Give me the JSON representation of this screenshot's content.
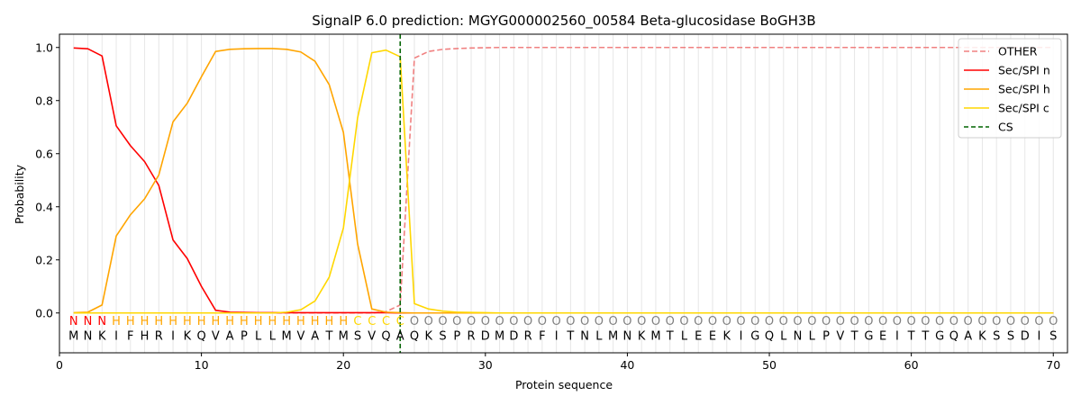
{
  "chart_data": {
    "type": "line",
    "title": "SignalP 6.0 prediction: MGYG000002560_00584 Beta-glucosidase BoGH3B",
    "xlabel": "Protein sequence",
    "ylabel": "Probability",
    "xlim": [
      0,
      71
    ],
    "ylim": [
      -0.15,
      1.05
    ],
    "xticks": [
      0,
      10,
      20,
      30,
      40,
      50,
      60,
      70
    ],
    "yticks": [
      0.0,
      0.2,
      0.4,
      0.6,
      0.8,
      1.0
    ],
    "grid": "vertical lines at each residue",
    "legend_position": "top-right",
    "sequence": [
      "M",
      "N",
      "K",
      "I",
      "F",
      "H",
      "R",
      "I",
      "K",
      "Q",
      "V",
      "A",
      "P",
      "L",
      "L",
      "M",
      "V",
      "A",
      "T",
      "M",
      "S",
      "V",
      "Q",
      "A",
      "Q",
      "K",
      "S",
      "P",
      "R",
      "D",
      "M",
      "D",
      "R",
      "F",
      "I",
      "T",
      "N",
      "L",
      "M",
      "N",
      "K",
      "M",
      "T",
      "L",
      "E",
      "E",
      "K",
      "I",
      "G",
      "Q",
      "L",
      "N",
      "L",
      "P",
      "V",
      "T",
      "G",
      "E",
      "I",
      "T",
      "T",
      "G",
      "Q",
      "A",
      "K",
      "S",
      "S",
      "D",
      "I",
      "S"
    ],
    "annotation": [
      "N",
      "N",
      "N",
      "H",
      "H",
      "H",
      "H",
      "H",
      "H",
      "H",
      "H",
      "H",
      "H",
      "H",
      "H",
      "H",
      "H",
      "H",
      "H",
      "H",
      "C",
      "C",
      "C",
      "C",
      "O",
      "O",
      "O",
      "O",
      "O",
      "O",
      "O",
      "O",
      "O",
      "O",
      "O",
      "O",
      "O",
      "O",
      "O",
      "O",
      "O",
      "O",
      "O",
      "O",
      "O",
      "O",
      "O",
      "O",
      "O",
      "O",
      "O",
      "O",
      "O",
      "O",
      "O",
      "O",
      "O",
      "O",
      "O",
      "O",
      "O",
      "O",
      "O",
      "O",
      "O",
      "O",
      "O",
      "O",
      "O",
      "O"
    ],
    "annotation_colors": {
      "N": "#ff0000",
      "H": "#ffa500",
      "C": "#ffd700",
      "O": "#808080"
    },
    "cleavage_site": 24,
    "series": [
      {
        "name": "OTHER",
        "color": "#f08080",
        "dash": true,
        "values": [
          0,
          0,
          0,
          0,
          0,
          0,
          0,
          0,
          0,
          0,
          0,
          0,
          0,
          0,
          0,
          0,
          0,
          0,
          0,
          0,
          0,
          0,
          0.005,
          0.03,
          0.96,
          0.985,
          0.993,
          0.996,
          0.998,
          0.999,
          1,
          1,
          1,
          1,
          1,
          1,
          1,
          1,
          1,
          1,
          1,
          1,
          1,
          1,
          1,
          1,
          1,
          1,
          1,
          1,
          1,
          1,
          1,
          1,
          1,
          1,
          1,
          1,
          1,
          1,
          1,
          1,
          1,
          1,
          1,
          1,
          1,
          1,
          1,
          1
        ]
      },
      {
        "name": "Sec/SPI n",
        "color": "#ff0000",
        "dash": false,
        "values": [
          0.998,
          0.995,
          0.968,
          0.705,
          0.63,
          0.57,
          0.48,
          0.275,
          0.205,
          0.1,
          0.01,
          0.003,
          0.002,
          0.001,
          0.001,
          0.001,
          0.001,
          0.001,
          0.001,
          0.001,
          0.001,
          0.001,
          0.001,
          0,
          0,
          0,
          0,
          0,
          0,
          0,
          0,
          0,
          0,
          0,
          0,
          0,
          0,
          0,
          0,
          0,
          0,
          0,
          0,
          0,
          0,
          0,
          0,
          0,
          0,
          0,
          0,
          0,
          0,
          0,
          0,
          0,
          0,
          0,
          0,
          0,
          0,
          0,
          0,
          0,
          0,
          0,
          0,
          0,
          0,
          0
        ]
      },
      {
        "name": "Sec/SPI h",
        "color": "#ffa500",
        "dash": false,
        "values": [
          0.001,
          0.003,
          0.03,
          0.29,
          0.37,
          0.43,
          0.52,
          0.72,
          0.79,
          0.89,
          0.985,
          0.993,
          0.995,
          0.996,
          0.996,
          0.993,
          0.983,
          0.948,
          0.86,
          0.68,
          0.26,
          0.015,
          0.003,
          0.001,
          0,
          0,
          0,
          0,
          0,
          0,
          0,
          0,
          0,
          0,
          0,
          0,
          0,
          0,
          0,
          0,
          0,
          0,
          0,
          0,
          0,
          0,
          0,
          0,
          0,
          0,
          0,
          0,
          0,
          0,
          0,
          0,
          0,
          0,
          0,
          0,
          0,
          0,
          0,
          0,
          0,
          0,
          0,
          0,
          0,
          0
        ]
      },
      {
        "name": "Sec/SPI c",
        "color": "#ffd700",
        "dash": false,
        "values": [
          0,
          0,
          0,
          0,
          0,
          0,
          0,
          0,
          0,
          0,
          0,
          0,
          0,
          0,
          0,
          0.003,
          0.012,
          0.045,
          0.135,
          0.32,
          0.735,
          0.98,
          0.99,
          0.965,
          0.035,
          0.015,
          0.007,
          0.003,
          0.002,
          0.001,
          0,
          0,
          0,
          0,
          0,
          0,
          0,
          0,
          0,
          0,
          0,
          0,
          0,
          0,
          0,
          0,
          0,
          0,
          0,
          0,
          0,
          0,
          0,
          0,
          0,
          0,
          0,
          0,
          0,
          0,
          0,
          0,
          0,
          0,
          0,
          0,
          0,
          0,
          0,
          0
        ]
      }
    ],
    "cs_legend_label": "CS",
    "cs_color": "#006400"
  }
}
